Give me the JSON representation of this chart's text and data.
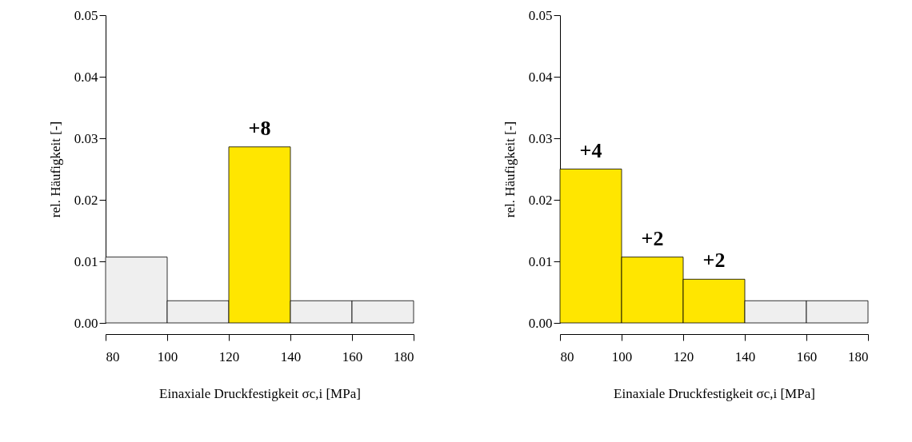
{
  "chart_data": [
    {
      "type": "histogram",
      "bins": [
        80,
        100,
        120,
        140,
        160,
        180
      ],
      "values": [
        0.0107,
        0.0036,
        0.0286,
        0.0036,
        0.0036
      ],
      "colors": [
        "#efefef",
        "#efefef",
        "#ffe600",
        "#efefef",
        "#efefef"
      ],
      "xlabel": "Einaxiale Druckfestigkeit σc,i [MPa]",
      "ylabel": "rel. Häufigkeit [-]",
      "xlim": [
        80,
        180
      ],
      "xticks": [
        80,
        100,
        120,
        140,
        160,
        180
      ],
      "ylim": [
        0,
        0.05
      ],
      "yticks": [
        {
          "value": 0,
          "label": "0.00"
        },
        0.01,
        0.02,
        0.03,
        0.04,
        0.05
      ],
      "grid": false,
      "annotations": [
        {
          "text": "+8",
          "x": 130,
          "y": 0.0286
        }
      ]
    },
    {
      "type": "histogram",
      "bins": [
        80,
        100,
        120,
        140,
        160,
        180
      ],
      "values": [
        0.025,
        0.0107,
        0.0071,
        0.0036,
        0.0036
      ],
      "colors": [
        "#ffe600",
        "#ffe600",
        "#ffe600",
        "#efefef",
        "#efefef"
      ],
      "xlabel": "Einaxiale Druckfestigkeit σc,i [MPa]",
      "ylabel": "rel. Häufigkeit [-]",
      "xlim": [
        80,
        180
      ],
      "xticks": [
        80,
        100,
        120,
        140,
        160,
        180
      ],
      "ylim": [
        0,
        0.05
      ],
      "yticks": [
        {
          "value": 0,
          "label": "0.00"
        },
        0.01,
        0.02,
        0.03,
        0.04,
        0.05
      ],
      "grid": false,
      "annotations": [
        {
          "text": "+4",
          "x": 90,
          "y": 0.025
        },
        {
          "text": "+2",
          "x": 110,
          "y": 0.0107
        },
        {
          "text": "+2",
          "x": 130,
          "y": 0.0071
        }
      ]
    }
  ]
}
